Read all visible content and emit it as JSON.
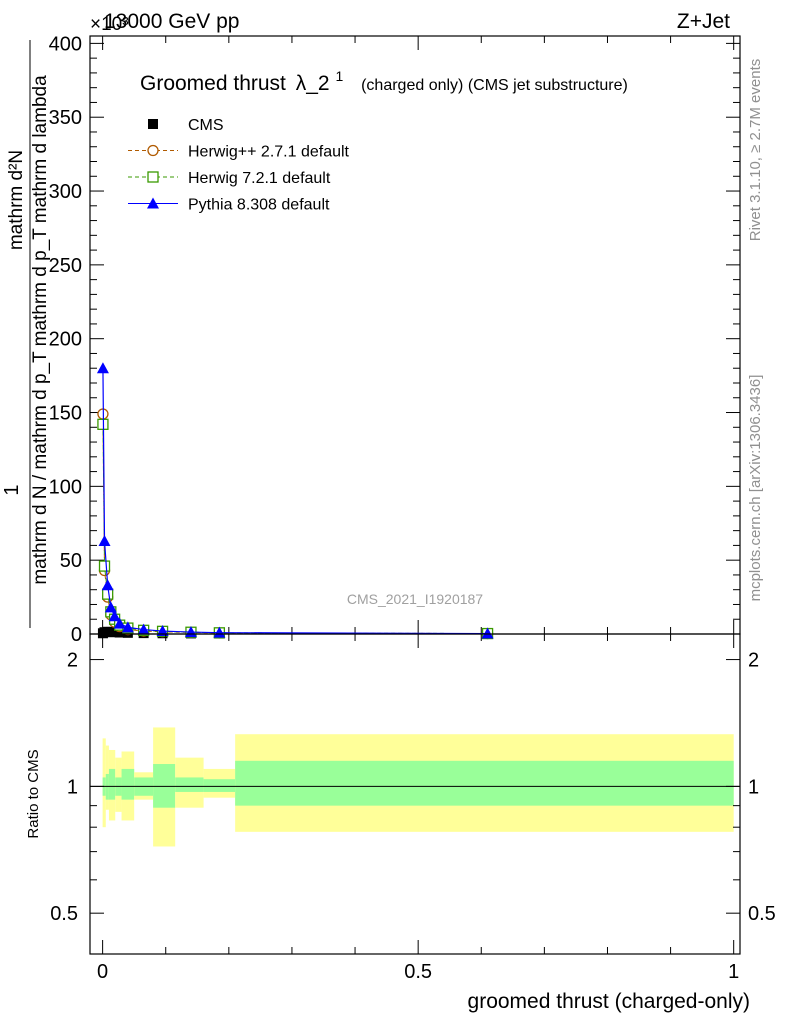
{
  "header": {
    "left": "13000 GeV pp",
    "right": "Z+Jet",
    "exponent": "×10³"
  },
  "title": {
    "main": "Groomed thrust",
    "lambda": "λ_2",
    "lambda_sup": "1",
    "sub": "(charged only) (CMS jet substructure)"
  },
  "side_labels": {
    "rivet": "Rivet 3.1.10, ≥ 2.7M events",
    "mcplots": "mcplots.cern.ch [arXiv:1306.3436]"
  },
  "watermark": "CMS_2021_I1920187",
  "ylabel_top": {
    "one": "1",
    "denominator": "mathrm d N / mathrm d p_T mathrm d p_T mathrm d lambda",
    "numerator": "mathrm d²N"
  },
  "ylabel_ratio": "Ratio to CMS",
  "xlabel": "groomed thrust (charged-only)",
  "legend": [
    {
      "label": "CMS",
      "color": "#000000",
      "marker": "square-filled"
    },
    {
      "label": "Herwig++ 2.7.1 default",
      "color": "#b05a00",
      "marker": "circle-open"
    },
    {
      "label": "Herwig 7.2.1 default",
      "color": "#3a9a00",
      "marker": "square-open"
    },
    {
      "label": "Pythia 8.308 default",
      "color": "#0000ff",
      "marker": "triangle-filled"
    }
  ],
  "chart_data": {
    "type": "line",
    "xlim": [
      -0.02,
      1.01
    ],
    "ylim": [
      0,
      405
    ],
    "ylim_ratio": [
      0.4,
      2.3
    ],
    "x_ticks": [
      {
        "v": 0,
        "label": "0"
      },
      {
        "v": 0.5,
        "label": "0.5"
      },
      {
        "v": 1,
        "label": "1"
      }
    ],
    "y_ticks": [
      {
        "v": 0,
        "label": "0"
      },
      {
        "v": 50,
        "label": "50"
      },
      {
        "v": 100,
        "label": "100"
      },
      {
        "v": 150,
        "label": "150"
      },
      {
        "v": 200,
        "label": "200"
      },
      {
        "v": 250,
        "label": "250"
      },
      {
        "v": 300,
        "label": "300"
      },
      {
        "v": 350,
        "label": "350"
      },
      {
        "v": 400,
        "label": "400"
      }
    ],
    "ratio_ticks": [
      {
        "v": 0.5,
        "label": "0.5"
      },
      {
        "v": 1,
        "label": "1"
      },
      {
        "v": 2,
        "label": "2"
      }
    ],
    "series": [
      {
        "name": "CMS",
        "x": [
          0.0005,
          0.003,
          0.008,
          0.013,
          0.019,
          0.027,
          0.04,
          0.065,
          0.095,
          0.14,
          0.185,
          0.61
        ],
        "y": [
          0.5,
          1.2,
          1.5,
          1.4,
          1.2,
          1.0,
          0.8,
          0.6,
          0.5,
          0.4,
          0.3,
          0.1
        ]
      },
      {
        "name": "Herwig++ 2.7.1 default",
        "x": [
          0.0005,
          0.003,
          0.008,
          0.013,
          0.019,
          0.027,
          0.04,
          0.065,
          0.095,
          0.14,
          0.185,
          0.61
        ],
        "y": [
          149,
          43,
          25,
          13,
          8,
          5,
          3,
          2,
          1.5,
          1,
          0.7,
          0.3
        ]
      },
      {
        "name": "Herwig 7.2.1 default",
        "x": [
          0.0005,
          0.003,
          0.008,
          0.013,
          0.019,
          0.027,
          0.04,
          0.065,
          0.095,
          0.14,
          0.185,
          0.61
        ],
        "y": [
          142,
          46,
          27,
          15,
          10,
          6,
          4,
          2.5,
          1.8,
          1.2,
          0.8,
          0.3
        ]
      },
      {
        "name": "Pythia 8.308 default",
        "x": [
          0.0005,
          0.003,
          0.008,
          0.013,
          0.019,
          0.027,
          0.04,
          0.065,
          0.095,
          0.14,
          0.185,
          0.61
        ],
        "y": [
          180,
          63,
          33,
          18,
          12,
          7,
          4.5,
          3,
          2,
          1.3,
          0.9,
          0.3
        ]
      }
    ],
    "ratio_bands": [
      {
        "x0": 0.0,
        "x1": 0.005,
        "inner": [
          0.95,
          1.05
        ],
        "outer": [
          0.8,
          1.3
        ]
      },
      {
        "x0": 0.005,
        "x1": 0.01,
        "inner": [
          0.93,
          1.07
        ],
        "outer": [
          0.88,
          1.25
        ]
      },
      {
        "x0": 0.01,
        "x1": 0.02,
        "inner": [
          0.93,
          1.1
        ],
        "outer": [
          0.83,
          1.22
        ]
      },
      {
        "x0": 0.02,
        "x1": 0.03,
        "inner": [
          0.95,
          1.05
        ],
        "outer": [
          0.87,
          1.17
        ]
      },
      {
        "x0": 0.03,
        "x1": 0.05,
        "inner": [
          0.93,
          1.1
        ],
        "outer": [
          0.83,
          1.21
        ]
      },
      {
        "x0": 0.05,
        "x1": 0.08,
        "inner": [
          0.95,
          1.05
        ],
        "outer": [
          0.93,
          1.08
        ]
      },
      {
        "x0": 0.08,
        "x1": 0.115,
        "inner": [
          0.89,
          1.13
        ],
        "outer": [
          0.72,
          1.38
        ]
      },
      {
        "x0": 0.115,
        "x1": 0.16,
        "inner": [
          0.97,
          1.05
        ],
        "outer": [
          0.89,
          1.17
        ]
      },
      {
        "x0": 0.16,
        "x1": 0.21,
        "inner": [
          0.97,
          1.04
        ],
        "outer": [
          0.94,
          1.1
        ]
      },
      {
        "x0": 0.21,
        "x1": 1.0,
        "inner": [
          0.9,
          1.15
        ],
        "outer": [
          0.78,
          1.33
        ]
      }
    ]
  }
}
